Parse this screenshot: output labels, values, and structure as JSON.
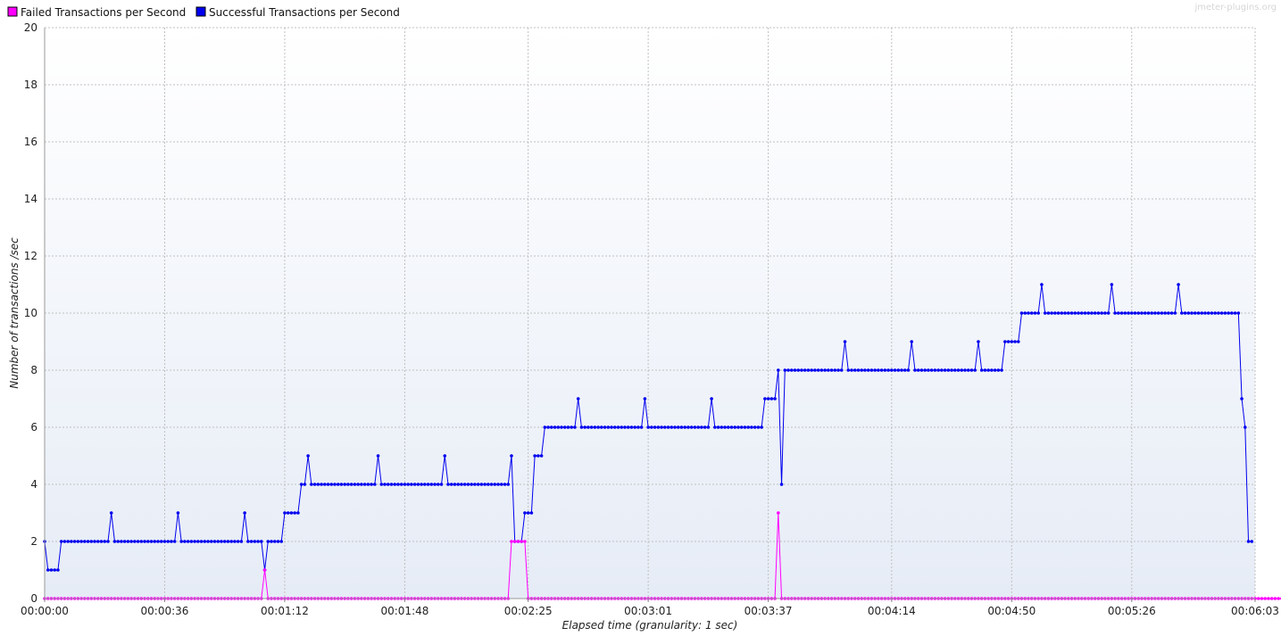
{
  "chart_data": {
    "type": "line",
    "watermark": "jmeter-plugins.org",
    "xlabel": "Elapsed time (granularity: 1 sec)",
    "ylabel": "Number of transactions /sec",
    "ylim": [
      0,
      20
    ],
    "yticks": [
      0,
      2,
      4,
      6,
      8,
      10,
      12,
      14,
      16,
      18,
      20
    ],
    "xlim_seconds": [
      0,
      363
    ],
    "xticks": [
      {
        "t": 0,
        "label": "00:00:00"
      },
      {
        "t": 36,
        "label": "00:00:36"
      },
      {
        "t": 72,
        "label": "00:01:12"
      },
      {
        "t": 108,
        "label": "00:01:48"
      },
      {
        "t": 145,
        "label": "00:02:25"
      },
      {
        "t": 181,
        "label": "00:03:01"
      },
      {
        "t": 217,
        "label": "00:03:37"
      },
      {
        "t": 254,
        "label": "00:04:14"
      },
      {
        "t": 290,
        "label": "00:04:50"
      },
      {
        "t": 326,
        "label": "00:05:26"
      },
      {
        "t": 363,
        "label": "00:06:03"
      }
    ],
    "grid": true,
    "legend_position": "top-left",
    "series": [
      {
        "name": "Failed Transactions per Second",
        "color": "#ff00ff",
        "values": [
          0,
          0,
          0,
          0,
          0,
          0,
          0,
          0,
          0,
          0,
          0,
          0,
          0,
          0,
          0,
          0,
          0,
          0,
          0,
          0,
          0,
          0,
          0,
          0,
          0,
          0,
          0,
          0,
          0,
          0,
          0,
          0,
          0,
          0,
          0,
          0,
          0,
          0,
          0,
          0,
          0,
          0,
          0,
          0,
          0,
          0,
          0,
          0,
          0,
          0,
          0,
          0,
          0,
          0,
          0,
          0,
          0,
          0,
          0,
          0,
          0,
          0,
          0,
          0,
          0,
          0,
          1,
          0,
          0,
          0,
          0,
          0,
          0,
          0,
          0,
          0,
          0,
          0,
          0,
          0,
          0,
          0,
          0,
          0,
          0,
          0,
          0,
          0,
          0,
          0,
          0,
          0,
          0,
          0,
          0,
          0,
          0,
          0,
          0,
          0,
          0,
          0,
          0,
          0,
          0,
          0,
          0,
          0,
          0,
          0,
          0,
          0,
          0,
          0,
          0,
          0,
          0,
          0,
          0,
          0,
          0,
          0,
          0,
          0,
          0,
          0,
          0,
          0,
          0,
          0,
          0,
          0,
          0,
          0,
          0,
          0,
          0,
          0,
          0,
          0,
          2,
          2,
          2,
          2,
          2,
          0,
          0,
          0,
          0,
          0,
          0,
          0,
          0,
          0,
          0,
          0,
          0,
          0,
          0,
          0,
          0,
          0,
          0,
          0,
          0,
          0,
          0,
          0,
          0,
          0,
          0,
          0,
          0,
          0,
          0,
          0,
          0,
          0,
          0,
          0,
          0,
          0,
          0,
          0,
          0,
          0,
          0,
          0,
          0,
          0,
          0,
          0,
          0,
          0,
          0,
          0,
          0,
          0,
          0,
          0,
          0,
          0,
          0,
          0,
          0,
          0,
          0,
          0,
          0,
          0,
          0,
          0,
          0,
          0,
          0,
          0,
          0,
          0,
          0,
          0,
          3,
          0,
          0,
          0,
          0,
          0,
          0,
          0,
          0,
          0,
          0,
          0,
          0,
          0,
          0,
          0,
          0,
          0,
          0,
          0,
          0,
          0,
          0,
          0,
          0,
          0,
          0,
          0,
          0,
          0,
          0,
          0,
          0,
          0,
          0,
          0,
          0,
          0,
          0,
          0,
          0,
          0,
          0,
          0,
          0,
          0,
          0,
          0,
          0,
          0,
          0,
          0,
          0,
          0,
          0,
          0,
          0,
          0,
          0,
          0,
          0,
          0,
          0,
          0,
          0,
          0,
          0,
          0,
          0,
          0,
          0,
          0,
          0,
          0,
          0,
          0,
          0,
          0,
          0,
          0,
          0,
          0,
          0,
          0,
          0,
          0,
          0,
          0,
          0,
          0,
          0,
          0,
          0,
          0,
          0,
          0,
          0,
          0,
          0,
          0,
          0,
          0,
          0,
          0,
          0,
          0,
          0,
          0,
          0,
          0,
          0,
          0,
          0,
          0,
          0,
          0,
          0,
          0,
          0,
          0,
          0,
          0,
          0,
          0,
          0,
          0,
          0,
          0,
          0,
          0,
          0,
          0,
          0,
          0,
          0,
          0,
          0,
          0,
          0,
          0,
          0,
          0,
          0,
          0,
          0,
          0,
          0,
          0,
          0,
          0,
          0,
          0,
          0,
          0,
          0,
          0,
          0,
          0,
          0,
          0,
          0,
          0
        ]
      },
      {
        "name": "Successful Transactions per Second",
        "color": "#0000ee",
        "values": [
          2,
          1,
          1,
          1,
          1,
          2,
          2,
          2,
          2,
          2,
          2,
          2,
          2,
          2,
          2,
          2,
          2,
          2,
          2,
          2,
          3,
          2,
          2,
          2,
          2,
          2,
          2,
          2,
          2,
          2,
          2,
          2,
          2,
          2,
          2,
          2,
          2,
          2,
          2,
          2,
          3,
          2,
          2,
          2,
          2,
          2,
          2,
          2,
          2,
          2,
          2,
          2,
          2,
          2,
          2,
          2,
          2,
          2,
          2,
          2,
          3,
          2,
          2,
          2,
          2,
          2,
          1,
          2,
          2,
          2,
          2,
          2,
          3,
          3,
          3,
          3,
          3,
          4,
          4,
          5,
          4,
          4,
          4,
          4,
          4,
          4,
          4,
          4,
          4,
          4,
          4,
          4,
          4,
          4,
          4,
          4,
          4,
          4,
          4,
          4,
          5,
          4,
          4,
          4,
          4,
          4,
          4,
          4,
          4,
          4,
          4,
          4,
          4,
          4,
          4,
          4,
          4,
          4,
          4,
          4,
          5,
          4,
          4,
          4,
          4,
          4,
          4,
          4,
          4,
          4,
          4,
          4,
          4,
          4,
          4,
          4,
          4,
          4,
          4,
          4,
          5,
          2,
          2,
          2,
          3,
          3,
          3,
          5,
          5,
          5,
          6,
          6,
          6,
          6,
          6,
          6,
          6,
          6,
          6,
          6,
          7,
          6,
          6,
          6,
          6,
          6,
          6,
          6,
          6,
          6,
          6,
          6,
          6,
          6,
          6,
          6,
          6,
          6,
          6,
          6,
          7,
          6,
          6,
          6,
          6,
          6,
          6,
          6,
          6,
          6,
          6,
          6,
          6,
          6,
          6,
          6,
          6,
          6,
          6,
          6,
          7,
          6,
          6,
          6,
          6,
          6,
          6,
          6,
          6,
          6,
          6,
          6,
          6,
          6,
          6,
          6,
          7,
          7,
          7,
          7,
          8,
          4,
          8,
          8,
          8,
          8,
          8,
          8,
          8,
          8,
          8,
          8,
          8,
          8,
          8,
          8,
          8,
          8,
          8,
          8,
          9,
          8,
          8,
          8,
          8,
          8,
          8,
          8,
          8,
          8,
          8,
          8,
          8,
          8,
          8,
          8,
          8,
          8,
          8,
          8,
          9,
          8,
          8,
          8,
          8,
          8,
          8,
          8,
          8,
          8,
          8,
          8,
          8,
          8,
          8,
          8,
          8,
          8,
          8,
          8,
          9,
          8,
          8,
          8,
          8,
          8,
          8,
          8,
          9,
          9,
          9,
          9,
          9,
          10,
          10,
          10,
          10,
          10,
          10,
          11,
          10,
          10,
          10,
          10,
          10,
          10,
          10,
          10,
          10,
          10,
          10,
          10,
          10,
          10,
          10,
          10,
          10,
          10,
          10,
          10,
          11,
          10,
          10,
          10,
          10,
          10,
          10,
          10,
          10,
          10,
          10,
          10,
          10,
          10,
          10,
          10,
          10,
          10,
          10,
          10,
          11,
          10,
          10,
          10,
          10,
          10,
          10,
          10,
          10,
          10,
          10,
          10,
          10,
          10,
          10,
          10,
          10,
          10,
          10,
          7,
          6,
          2,
          2
        ]
      }
    ]
  }
}
